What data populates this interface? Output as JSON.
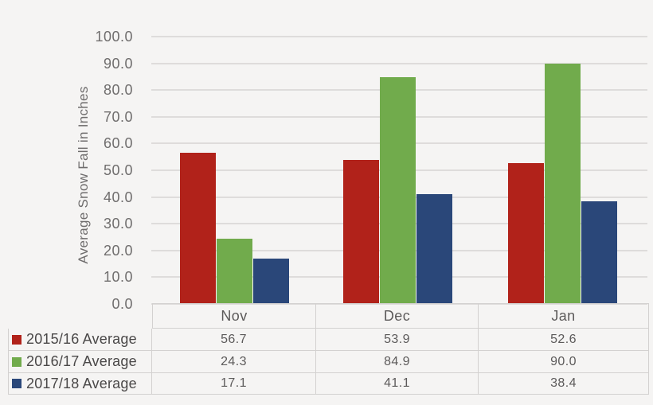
{
  "page": {
    "background": "#f5f4f3",
    "gridline_color": "#dedcdb",
    "table_border_color": "#d3d1d0",
    "axis_text_color": "#6f6d6d",
    "table_text_color": "#5c5a5a",
    "legend_text_color": "#4a4848"
  },
  "chart_data": {
    "type": "bar",
    "title": "",
    "xlabel": "",
    "ylabel": "Average Snow Fall in Inches",
    "categories": [
      "Nov",
      "Dec",
      "Jan"
    ],
    "series": [
      {
        "name": "2015/16 Average",
        "color": "#b1221a",
        "values": [
          56.7,
          53.9,
          52.6
        ]
      },
      {
        "name": "2016/17 Average",
        "color": "#71ab4c",
        "values": [
          24.3,
          84.9,
          90.0
        ]
      },
      {
        "name": "2017/18 Average",
        "color": "#2a4779",
        "values": [
          17.1,
          41.1,
          38.4
        ]
      }
    ],
    "ylim": [
      0,
      100
    ],
    "ytick_step": 10,
    "ytick_labels": [
      "0.0",
      "10.0",
      "20.0",
      "30.0",
      "40.0",
      "50.0",
      "60.0",
      "70.0",
      "80.0",
      "90.0",
      "100.0"
    ],
    "grid": true,
    "legend_position": "table-left",
    "value_decimals": 1
  }
}
